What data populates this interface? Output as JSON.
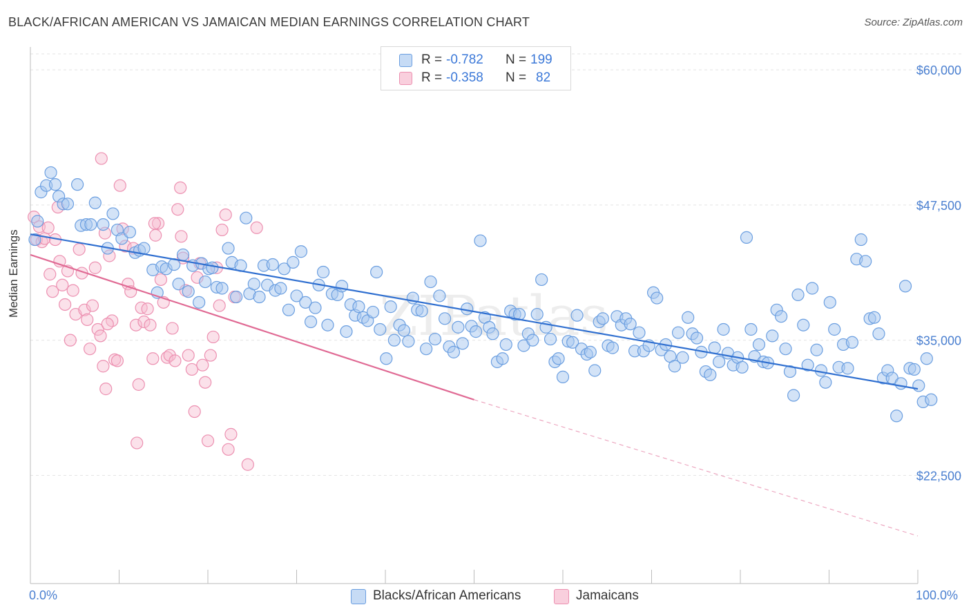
{
  "title": "BLACK/AFRICAN AMERICAN VS JAMAICAN MEDIAN EARNINGS CORRELATION CHART",
  "source": "Source: ZipAtlas.com",
  "watermark": "ZIPatlas",
  "legend_top": {
    "rows": [
      {
        "r_label": "R = ",
        "r_value": "-0.782",
        "n_label": "N = ",
        "n_value": "199"
      },
      {
        "r_label": "R = ",
        "r_value": "-0.358",
        "n_label": "N = ",
        "n_value": "82"
      }
    ]
  },
  "legend_bottom": {
    "items": [
      {
        "label": "Blacks/African Americans"
      },
      {
        "label": "Jamaicans"
      }
    ]
  },
  "x_start_label": "0.0%",
  "x_end_label": "100.0%",
  "colors": {
    "blue_fill": "#a8c8f0",
    "blue_stroke": "#6a9ee0",
    "blue_line": "#2f6fd0",
    "pink_fill": "#f7bcd0",
    "pink_stroke": "#ec8fb0",
    "pink_line": "#e06a94",
    "tick_color": "#4a7fd0",
    "grid": "#e3e3e3"
  },
  "chart_data": {
    "type": "scatter",
    "title": "BLACK/AFRICAN AMERICAN VS JAMAICAN MEDIAN EARNINGS CORRELATION CHART",
    "xlabel": "",
    "ylabel": "Median Earnings",
    "xlim": [
      0,
      100
    ],
    "ylim": [
      12500,
      62500
    ],
    "yticks": [
      22500,
      35000,
      47500,
      60000
    ],
    "ytick_labels": [
      "$22,500",
      "$35,000",
      "$47,500",
      "$60,000"
    ],
    "grid": true,
    "legend_placement": "top-center",
    "series": [
      {
        "name": "Blacks/African Americans",
        "r": -0.782,
        "n": 199,
        "trend": {
          "x": [
            0,
            100
          ],
          "y": [
            44800,
            30500
          ]
        },
        "points": [
          [
            0.5,
            44300
          ],
          [
            0.8,
            46000
          ],
          [
            1.2,
            48700
          ],
          [
            1.8,
            49300
          ],
          [
            2.3,
            50500
          ],
          [
            2.8,
            49400
          ],
          [
            3.2,
            48300
          ],
          [
            3.7,
            47600
          ],
          [
            4.2,
            47600
          ],
          [
            5.3,
            49400
          ],
          [
            5.7,
            45600
          ],
          [
            6.3,
            45700
          ],
          [
            6.8,
            45700
          ],
          [
            7.3,
            47700
          ],
          [
            8.2,
            45700
          ],
          [
            8.7,
            43500
          ],
          [
            9.3,
            46700
          ],
          [
            9.8,
            45200
          ],
          [
            10.3,
            44400
          ],
          [
            11.2,
            45000
          ],
          [
            11.8,
            43100
          ],
          [
            12.3,
            43300
          ],
          [
            12.8,
            43500
          ],
          [
            13.8,
            41500
          ],
          [
            14.3,
            39400
          ],
          [
            14.8,
            41800
          ],
          [
            15.3,
            41600
          ],
          [
            16.2,
            42000
          ],
          [
            16.7,
            40200
          ],
          [
            17.2,
            42900
          ],
          [
            17.8,
            39500
          ],
          [
            18.3,
            41900
          ],
          [
            19.0,
            38500
          ],
          [
            19.3,
            42100
          ],
          [
            19.7,
            40400
          ],
          [
            20.1,
            41600
          ],
          [
            20.5,
            41700
          ],
          [
            21.0,
            39900
          ],
          [
            21.6,
            39800
          ],
          [
            22.3,
            43500
          ],
          [
            22.7,
            42200
          ],
          [
            23.2,
            39000
          ],
          [
            23.7,
            41900
          ],
          [
            24.3,
            46300
          ],
          [
            24.7,
            39300
          ],
          [
            25.2,
            40200
          ],
          [
            25.8,
            39000
          ],
          [
            26.3,
            41900
          ],
          [
            26.7,
            40100
          ],
          [
            27.3,
            42000
          ],
          [
            27.6,
            39600
          ],
          [
            28.2,
            39800
          ],
          [
            28.6,
            41600
          ],
          [
            29.1,
            37800
          ],
          [
            29.6,
            42200
          ],
          [
            30.0,
            39100
          ],
          [
            30.5,
            43200
          ],
          [
            31.0,
            38500
          ],
          [
            31.6,
            36700
          ],
          [
            32.1,
            38000
          ],
          [
            32.5,
            40100
          ],
          [
            33.0,
            41300
          ],
          [
            33.5,
            36400
          ],
          [
            34.0,
            39300
          ],
          [
            34.6,
            39200
          ],
          [
            35.1,
            40000
          ],
          [
            35.6,
            35800
          ],
          [
            36.1,
            38300
          ],
          [
            36.6,
            37300
          ],
          [
            37.0,
            38100
          ],
          [
            37.5,
            37100
          ],
          [
            38.0,
            36800
          ],
          [
            38.6,
            37600
          ],
          [
            39.0,
            41300
          ],
          [
            39.4,
            36000
          ],
          [
            40.1,
            33300
          ],
          [
            40.6,
            38100
          ],
          [
            41.0,
            35000
          ],
          [
            41.6,
            36400
          ],
          [
            42.1,
            35900
          ],
          [
            42.6,
            34900
          ],
          [
            43.1,
            38900
          ],
          [
            43.6,
            37800
          ],
          [
            44.1,
            37700
          ],
          [
            44.6,
            34200
          ],
          [
            45.1,
            40400
          ],
          [
            45.6,
            35100
          ],
          [
            46.1,
            39100
          ],
          [
            46.7,
            37000
          ],
          [
            47.2,
            34400
          ],
          [
            47.7,
            33900
          ],
          [
            48.2,
            36200
          ],
          [
            48.7,
            34700
          ],
          [
            49.2,
            37900
          ],
          [
            49.7,
            36300
          ],
          [
            50.2,
            35800
          ],
          [
            50.7,
            44200
          ],
          [
            51.2,
            37100
          ],
          [
            51.7,
            36200
          ],
          [
            52.1,
            35600
          ],
          [
            52.6,
            33000
          ],
          [
            53.2,
            33300
          ],
          [
            53.6,
            34600
          ],
          [
            54.1,
            37700
          ],
          [
            54.6,
            37400
          ],
          [
            55.1,
            37400
          ],
          [
            55.6,
            34500
          ],
          [
            56.1,
            35600
          ],
          [
            56.6,
            35000
          ],
          [
            57.1,
            37400
          ],
          [
            57.6,
            40600
          ],
          [
            58.1,
            36200
          ],
          [
            58.6,
            35100
          ],
          [
            59.1,
            33000
          ],
          [
            59.5,
            33300
          ],
          [
            60.0,
            31600
          ],
          [
            60.6,
            34900
          ],
          [
            61.1,
            34800
          ],
          [
            61.6,
            37300
          ],
          [
            62.1,
            34200
          ],
          [
            62.7,
            33700
          ],
          [
            63.1,
            33900
          ],
          [
            63.6,
            32200
          ],
          [
            64.1,
            36700
          ],
          [
            64.5,
            37000
          ],
          [
            65.1,
            34500
          ],
          [
            65.6,
            34300
          ],
          [
            66.1,
            37200
          ],
          [
            66.6,
            36400
          ],
          [
            67.1,
            37000
          ],
          [
            67.6,
            36500
          ],
          [
            68.1,
            34000
          ],
          [
            68.6,
            35700
          ],
          [
            69.1,
            34000
          ],
          [
            69.7,
            34500
          ],
          [
            70.2,
            39400
          ],
          [
            70.6,
            38900
          ],
          [
            71.1,
            34100
          ],
          [
            71.6,
            34600
          ],
          [
            72.1,
            33500
          ],
          [
            72.6,
            32600
          ],
          [
            73.0,
            35700
          ],
          [
            73.5,
            33400
          ],
          [
            74.1,
            37100
          ],
          [
            74.6,
            35600
          ],
          [
            75.1,
            35200
          ],
          [
            75.6,
            33900
          ],
          [
            76.1,
            32100
          ],
          [
            76.6,
            31800
          ],
          [
            77.1,
            34300
          ],
          [
            77.6,
            33000
          ],
          [
            78.1,
            36000
          ],
          [
            78.6,
            33800
          ],
          [
            79.2,
            32700
          ],
          [
            79.7,
            33400
          ],
          [
            80.2,
            32500
          ],
          [
            80.7,
            44500
          ],
          [
            81.2,
            36000
          ],
          [
            81.6,
            33500
          ],
          [
            82.1,
            34600
          ],
          [
            82.6,
            33000
          ],
          [
            83.1,
            32900
          ],
          [
            83.6,
            35400
          ],
          [
            84.1,
            37800
          ],
          [
            84.6,
            37200
          ],
          [
            85.1,
            34200
          ],
          [
            85.6,
            32100
          ],
          [
            86.0,
            29900
          ],
          [
            86.5,
            39200
          ],
          [
            87.1,
            36400
          ],
          [
            87.6,
            32700
          ],
          [
            88.1,
            39800
          ],
          [
            88.6,
            34100
          ],
          [
            89.1,
            32200
          ],
          [
            89.6,
            31100
          ],
          [
            90.1,
            38500
          ],
          [
            90.6,
            36000
          ],
          [
            91.1,
            32500
          ],
          [
            91.6,
            34600
          ],
          [
            92.1,
            32400
          ],
          [
            92.6,
            34800
          ],
          [
            93.1,
            42500
          ],
          [
            93.6,
            44300
          ],
          [
            94.1,
            42300
          ],
          [
            94.6,
            37000
          ],
          [
            95.1,
            37100
          ],
          [
            95.6,
            35600
          ],
          [
            96.1,
            31500
          ],
          [
            96.6,
            32200
          ],
          [
            97.1,
            31500
          ],
          [
            97.6,
            28000
          ],
          [
            98.1,
            31000
          ],
          [
            98.6,
            40000
          ],
          [
            99.1,
            32400
          ],
          [
            99.6,
            32300
          ],
          [
            100.1,
            30800
          ],
          [
            100.6,
            29300
          ],
          [
            101.0,
            33300
          ],
          [
            101.5,
            29500
          ]
        ]
      },
      {
        "name": "Jamaicans",
        "r": -0.358,
        "n": 82,
        "trend": {
          "x": [
            0,
            50
          ],
          "y": [
            42900,
            29500
          ],
          "dashed_to": {
            "x": 100,
            "y": 16900
          }
        },
        "points": [
          [
            0.4,
            46400
          ],
          [
            0.7,
            44300
          ],
          [
            1.0,
            45500
          ],
          [
            1.3,
            44100
          ],
          [
            1.6,
            44400
          ],
          [
            2.0,
            45400
          ],
          [
            2.2,
            41100
          ],
          [
            2.5,
            39500
          ],
          [
            2.8,
            44300
          ],
          [
            3.1,
            47300
          ],
          [
            3.3,
            42300
          ],
          [
            3.6,
            40100
          ],
          [
            3.9,
            38300
          ],
          [
            4.2,
            41400
          ],
          [
            4.5,
            35000
          ],
          [
            4.8,
            39600
          ],
          [
            5.1,
            37400
          ],
          [
            5.5,
            43400
          ],
          [
            5.8,
            41200
          ],
          [
            6.1,
            37800
          ],
          [
            6.4,
            36900
          ],
          [
            6.7,
            34200
          ],
          [
            7.0,
            38200
          ],
          [
            7.3,
            41700
          ],
          [
            7.6,
            36000
          ],
          [
            7.9,
            35400
          ],
          [
            8.2,
            32600
          ],
          [
            8.5,
            30500
          ],
          [
            8.9,
            42800
          ],
          [
            9.2,
            36800
          ],
          [
            9.5,
            33200
          ],
          [
            9.8,
            33100
          ],
          [
            10.1,
            49300
          ],
          [
            10.4,
            45300
          ],
          [
            10.7,
            43700
          ],
          [
            11.0,
            40200
          ],
          [
            11.3,
            39500
          ],
          [
            11.6,
            43500
          ],
          [
            11.9,
            36400
          ],
          [
            12.2,
            30900
          ],
          [
            12.5,
            38000
          ],
          [
            12.8,
            36700
          ],
          [
            13.2,
            37900
          ],
          [
            13.5,
            36400
          ],
          [
            13.8,
            33300
          ],
          [
            14.1,
            44700
          ],
          [
            14.4,
            45800
          ],
          [
            14.7,
            40600
          ],
          [
            15.0,
            38500
          ],
          [
            15.4,
            33400
          ],
          [
            15.7,
            33600
          ],
          [
            16.0,
            36100
          ],
          [
            16.3,
            33100
          ],
          [
            16.6,
            47100
          ],
          [
            16.9,
            49100
          ],
          [
            17.2,
            42600
          ],
          [
            17.5,
            39600
          ],
          [
            17.8,
            33600
          ],
          [
            18.2,
            32300
          ],
          [
            18.5,
            28400
          ],
          [
            18.8,
            40800
          ],
          [
            19.1,
            42100
          ],
          [
            19.4,
            32700
          ],
          [
            19.7,
            31100
          ],
          [
            20.0,
            25700
          ],
          [
            20.3,
            33600
          ],
          [
            20.6,
            35300
          ],
          [
            21.0,
            41700
          ],
          [
            21.3,
            38200
          ],
          [
            21.6,
            45200
          ],
          [
            22.0,
            46600
          ],
          [
            22.3,
            24900
          ],
          [
            22.6,
            26300
          ],
          [
            8.0,
            51800
          ],
          [
            8.4,
            44900
          ],
          [
            8.7,
            36500
          ],
          [
            12.0,
            25500
          ],
          [
            14.0,
            45800
          ],
          [
            17.0,
            44600
          ],
          [
            23.0,
            39000
          ],
          [
            24.5,
            23500
          ],
          [
            25.5,
            45400
          ]
        ]
      }
    ]
  }
}
